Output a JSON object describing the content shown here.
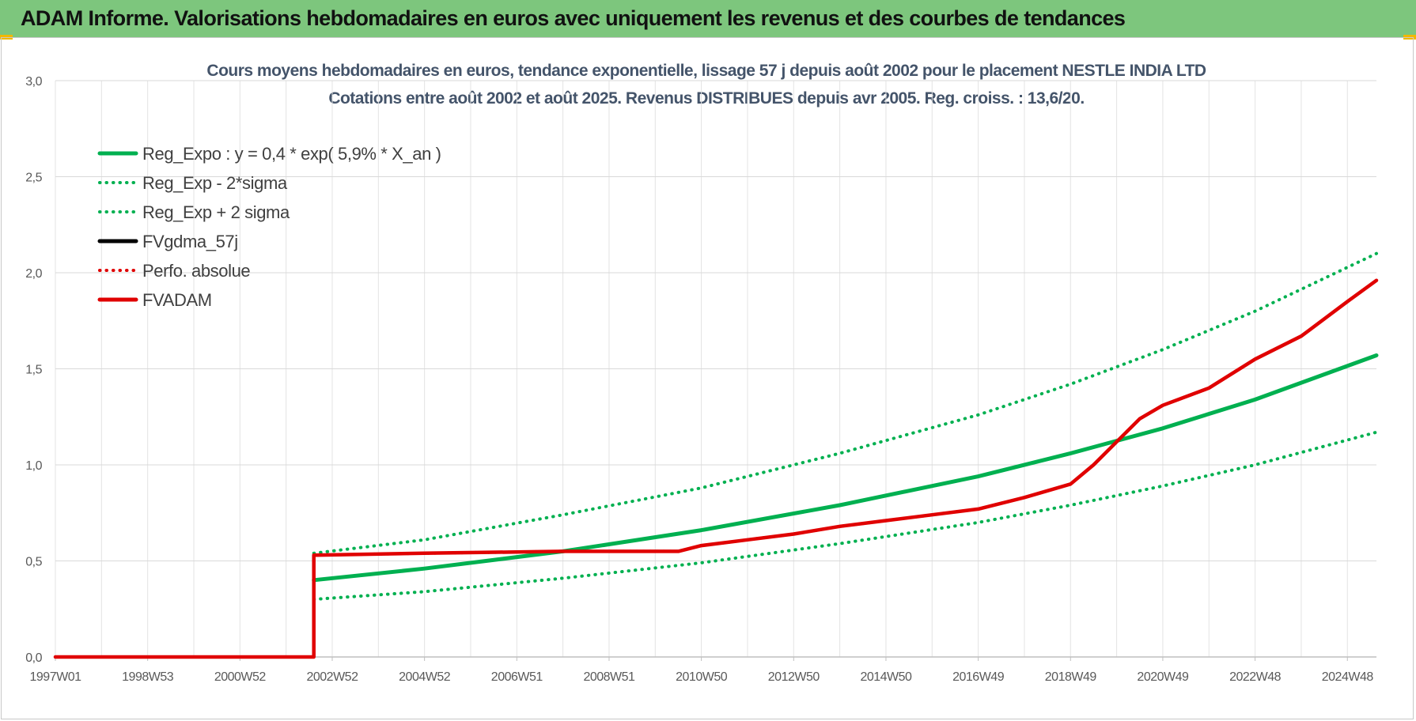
{
  "banner": {
    "title": "ADAM Informe. Valorisations hebdomadaires en euros avec uniquement les revenus et des courbes de tendances",
    "color": "#7dc67d"
  },
  "chart_data": {
    "type": "line",
    "title": "Cours moyens hebdomadaires en euros, tendance exponentielle, lissage 57 j depuis août 2002 pour le placement NESTLE INDIA LTD",
    "subtitle": "Cotations entre août 2002 et août 2025. Revenus DISTRIBUES depuis avr 2005. Reg. croiss. : 13,6/20.",
    "xlabel": "",
    "ylabel": "",
    "ylim": [
      0,
      3
    ],
    "xlim": [
      1997.0,
      2025.63
    ],
    "y_ticks": [
      "0,0",
      "0,5",
      "1,0",
      "1,5",
      "2,0",
      "2,5",
      "3,0"
    ],
    "x_ticks": [
      {
        "label": "1997W01",
        "x": 1997.0
      },
      {
        "label": "1998W53",
        "x": 1999.0
      },
      {
        "label": "2000W52",
        "x": 2001.0
      },
      {
        "label": "2002W52",
        "x": 2003.0
      },
      {
        "label": "2004W52",
        "x": 2005.0
      },
      {
        "label": "2006W51",
        "x": 2007.0
      },
      {
        "label": "2008W51",
        "x": 2009.0
      },
      {
        "label": "2010W50",
        "x": 2011.0
      },
      {
        "label": "2012W50",
        "x": 2013.0
      },
      {
        "label": "2014W50",
        "x": 2015.0
      },
      {
        "label": "2016W49",
        "x": 2017.0
      },
      {
        "label": "2018W49",
        "x": 2019.0
      },
      {
        "label": "2020W49",
        "x": 2021.0
      },
      {
        "label": "2022W48",
        "x": 2023.0
      },
      {
        "label": "2024W48",
        "x": 2025.0
      }
    ],
    "grid": true,
    "legend_position": "top-left",
    "series": [
      {
        "name": "Reg_Expo : y = 0,4 * exp( 5,9% *  X_an )",
        "color": "#00b050",
        "style": "solid",
        "x": [
          2002.6,
          2005.0,
          2008.0,
          2011.0,
          2014.0,
          2017.0,
          2019.0,
          2021.0,
          2023.0,
          2025.63
        ],
        "values": [
          0.4,
          0.46,
          0.55,
          0.66,
          0.79,
          0.94,
          1.06,
          1.19,
          1.34,
          1.57
        ]
      },
      {
        "name": "Reg_Exp - 2*sigma",
        "color": "#00b050",
        "style": "dotted",
        "x": [
          2002.6,
          2005.0,
          2008.0,
          2011.0,
          2014.0,
          2017.0,
          2019.0,
          2021.0,
          2023.0,
          2025.63
        ],
        "values": [
          0.3,
          0.34,
          0.41,
          0.49,
          0.59,
          0.7,
          0.79,
          0.89,
          1.0,
          1.17
        ]
      },
      {
        "name": "Reg_Exp + 2 sigma",
        "color": "#00b050",
        "style": "dotted",
        "x": [
          2002.6,
          2005.0,
          2008.0,
          2011.0,
          2014.0,
          2017.0,
          2019.0,
          2021.0,
          2023.0,
          2025.63
        ],
        "values": [
          0.54,
          0.61,
          0.74,
          0.88,
          1.06,
          1.26,
          1.42,
          1.6,
          1.8,
          2.1
        ]
      },
      {
        "name": "FVgdma_57j",
        "color": "#000000",
        "style": "solid",
        "x": [
          2002.6,
          2005.0,
          2008.0,
          2010.5,
          2011.0,
          2012.0,
          2013.0,
          2014.0,
          2015.0,
          2016.0,
          2017.0,
          2018.0,
          2019.0,
          2019.5,
          2020.0,
          2020.5,
          2021.0,
          2022.0,
          2023.0,
          2024.0,
          2025.0,
          2025.63
        ],
        "values": [
          0.53,
          0.54,
          0.55,
          0.55,
          0.58,
          0.61,
          0.64,
          0.68,
          0.71,
          0.74,
          0.77,
          0.83,
          0.9,
          1.0,
          1.12,
          1.24,
          1.31,
          1.4,
          1.55,
          1.67,
          1.85,
          1.96
        ]
      },
      {
        "name": "Perfo. absolue",
        "color": "#e00000",
        "style": "dotted",
        "x": [
          2002.6,
          2005.0,
          2008.0,
          2010.5,
          2011.0,
          2012.0,
          2013.0,
          2014.0,
          2015.0,
          2016.0,
          2017.0,
          2018.0,
          2019.0,
          2019.5,
          2020.0,
          2020.5,
          2021.0,
          2022.0,
          2023.0,
          2024.0,
          2025.0,
          2025.63
        ],
        "values": [
          0.53,
          0.54,
          0.55,
          0.55,
          0.58,
          0.61,
          0.64,
          0.68,
          0.71,
          0.74,
          0.77,
          0.83,
          0.9,
          1.0,
          1.12,
          1.24,
          1.31,
          1.4,
          1.55,
          1.67,
          1.85,
          1.96
        ]
      },
      {
        "name": "FVADAM",
        "color": "#e00000",
        "style": "solid",
        "x": [
          1997.0,
          2002.6,
          2002.6,
          2005.0,
          2008.0,
          2010.5,
          2011.0,
          2012.0,
          2013.0,
          2014.0,
          2015.0,
          2016.0,
          2017.0,
          2018.0,
          2019.0,
          2019.5,
          2020.0,
          2020.5,
          2021.0,
          2022.0,
          2023.0,
          2024.0,
          2025.0,
          2025.63
        ],
        "values": [
          0.0,
          0.0,
          0.53,
          0.54,
          0.55,
          0.55,
          0.58,
          0.61,
          0.64,
          0.68,
          0.71,
          0.74,
          0.77,
          0.83,
          0.9,
          1.0,
          1.12,
          1.24,
          1.31,
          1.4,
          1.55,
          1.67,
          1.85,
          1.96
        ]
      }
    ]
  }
}
